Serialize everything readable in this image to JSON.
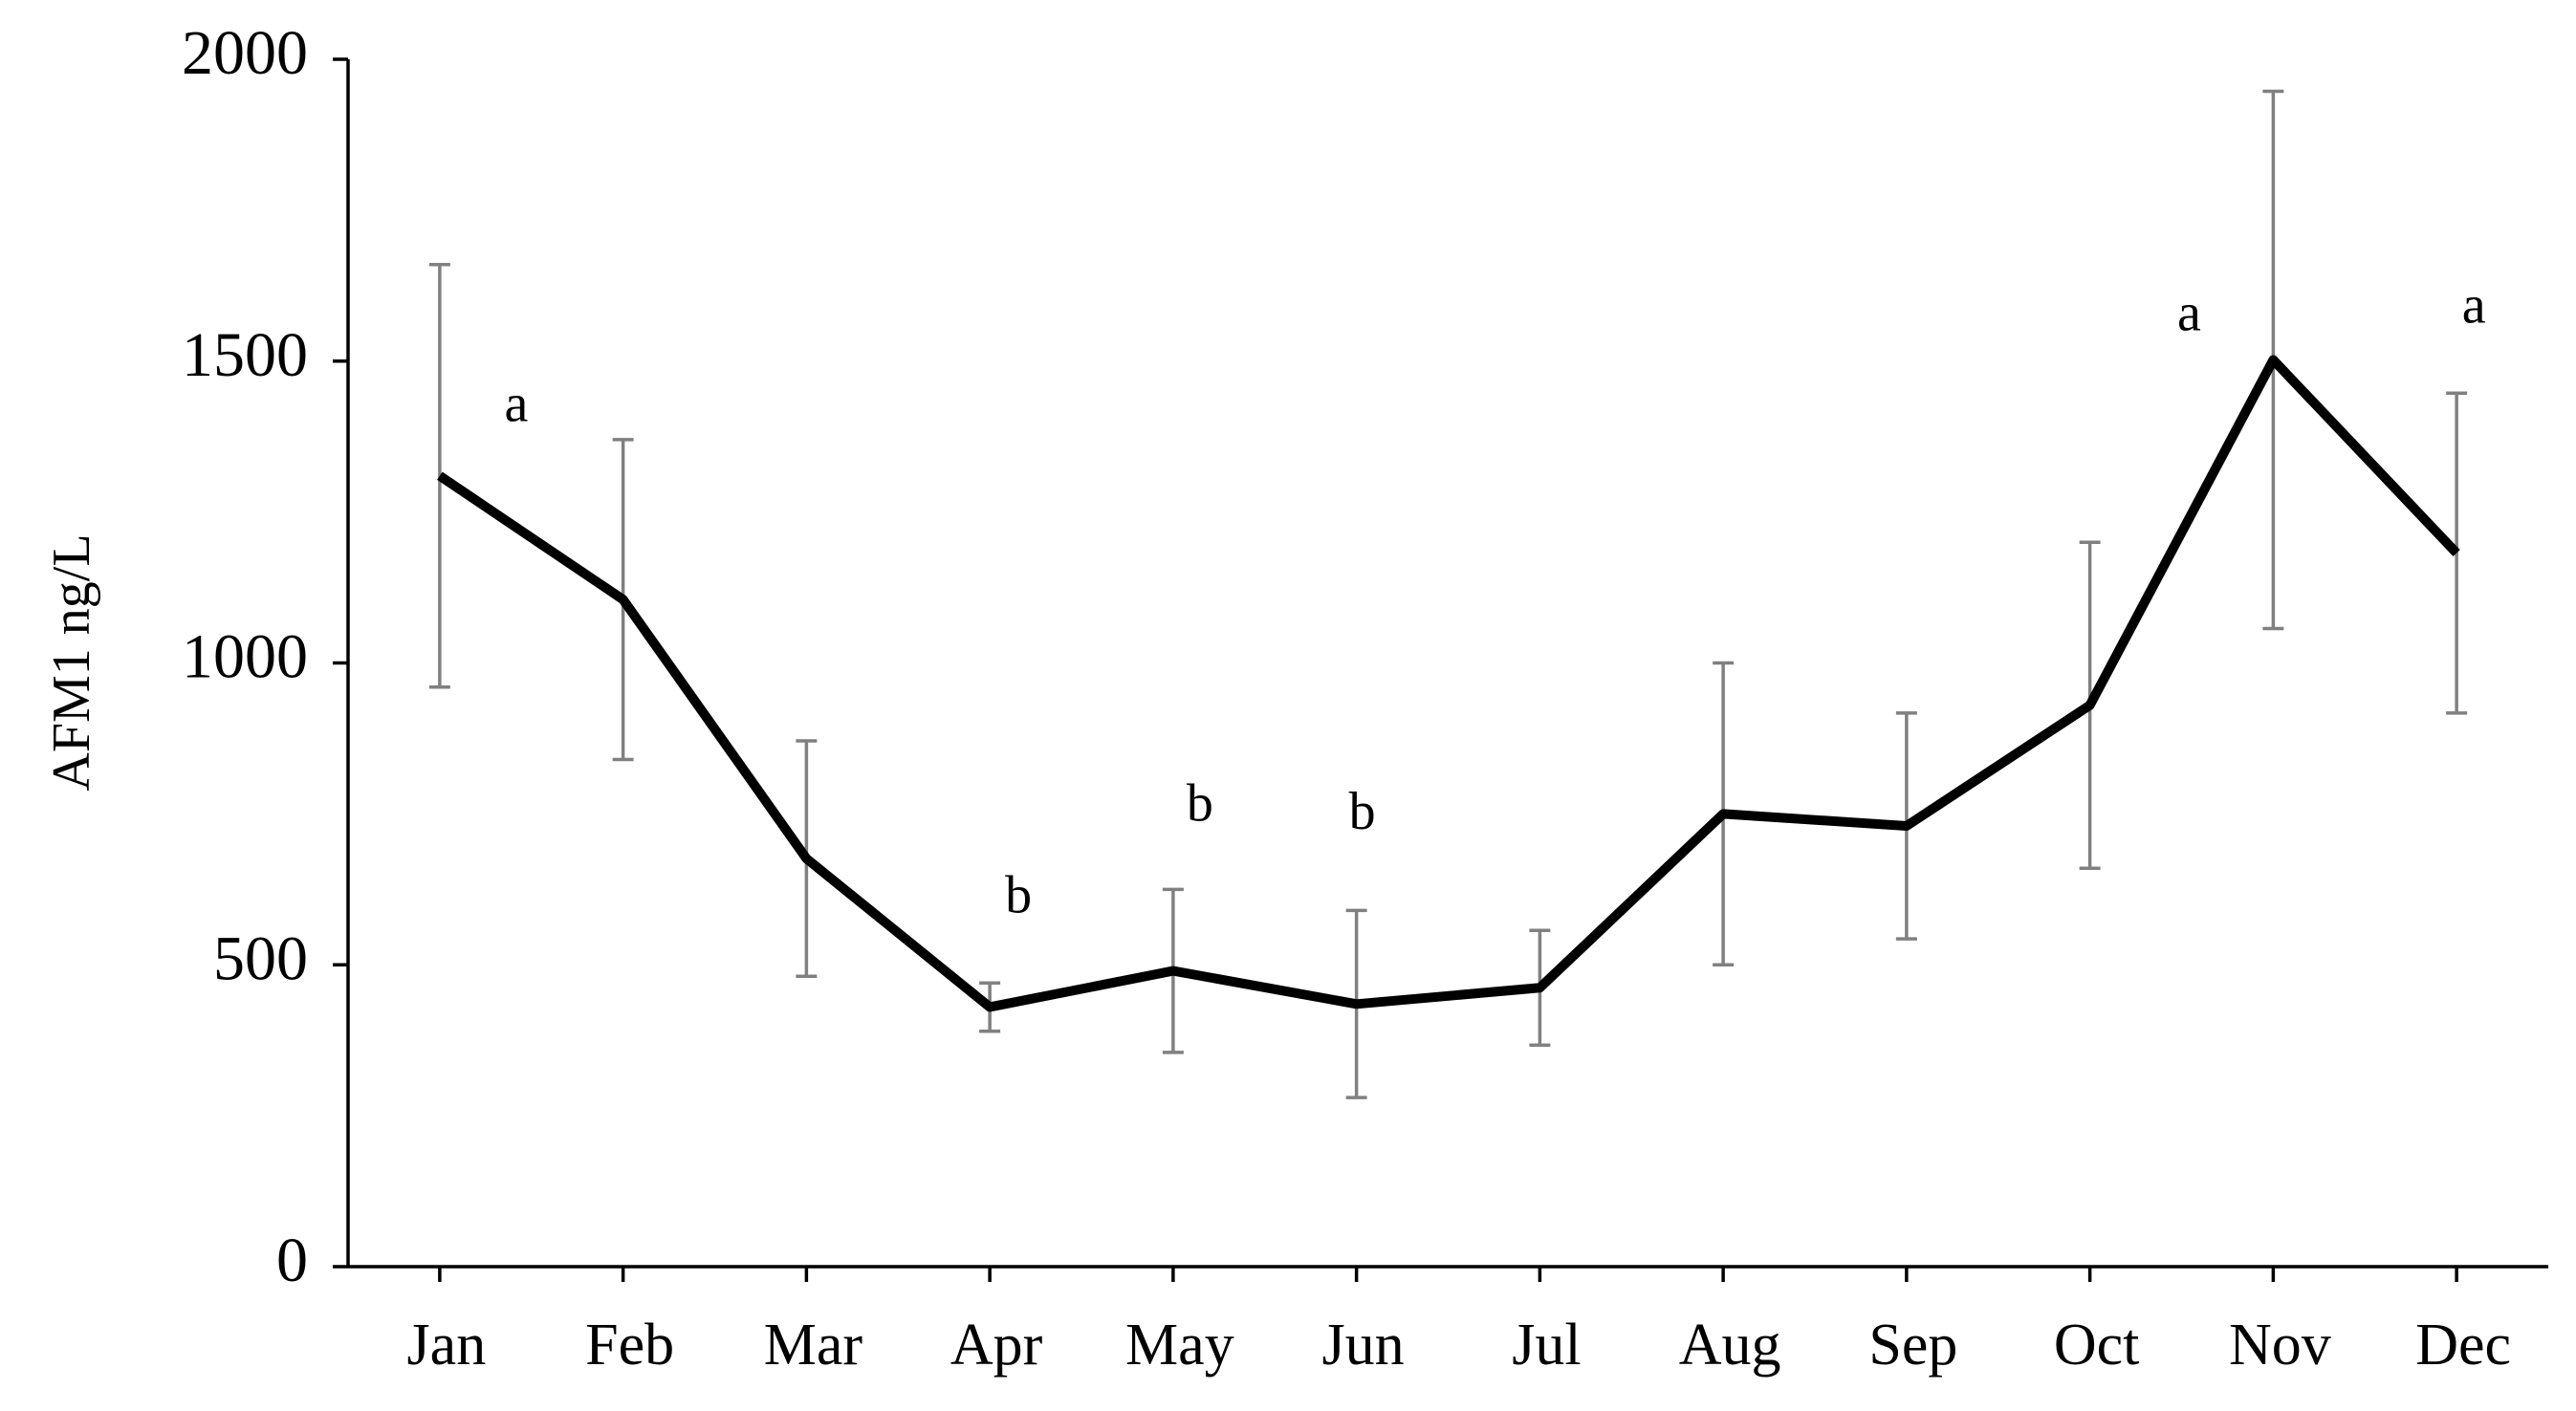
{
  "chart_data": {
    "type": "line",
    "y_label": "AFM1 ng/L",
    "categories": [
      "Jan",
      "Feb",
      "Mar",
      "Apr",
      "May",
      "Jun",
      "Jul",
      "Aug",
      "Sep",
      "Oct",
      "Nov",
      "Dec"
    ],
    "values": [
      1310,
      1105,
      676,
      430,
      490,
      435,
      462,
      750,
      730,
      930,
      1502,
      1182
    ],
    "errors": [
      350,
      265,
      195,
      40,
      135,
      155,
      95,
      250,
      187,
      270,
      445,
      265
    ],
    "color": "#000000",
    "error_color": "#808080",
    "ylim": [
      0,
      2000
    ],
    "yticks": [
      0,
      500,
      1000,
      1500,
      2000
    ],
    "annotations": [
      {
        "text": "a",
        "category": "Jan"
      },
      {
        "text": "b",
        "category": "Apr"
      },
      {
        "text": "b",
        "category": "May"
      },
      {
        "text": "b",
        "category": "Jun"
      },
      {
        "text": "a",
        "category": "Nov"
      },
      {
        "text": "a",
        "category": "Dec"
      }
    ]
  }
}
